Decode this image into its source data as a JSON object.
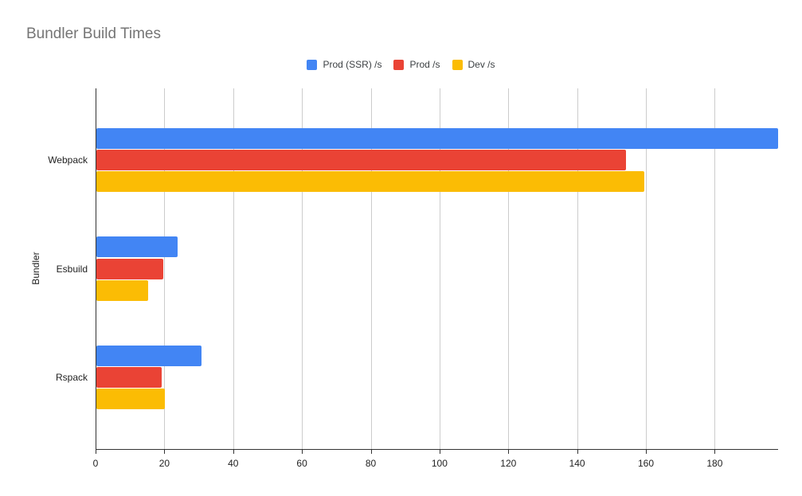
{
  "chart_data": {
    "type": "bar",
    "orientation": "horizontal",
    "title": "Bundler Build Times",
    "xlabel": "",
    "ylabel": "Bundler",
    "categories": [
      "Webpack",
      "Esbuild",
      "Rspack"
    ],
    "series": [
      {
        "name": "Prod (SSR) /s",
        "color": "#4285F4",
        "values": [
          198.2,
          23.6,
          30.6
        ]
      },
      {
        "name": "Prod /s",
        "color": "#EA4335",
        "values": [
          154.0,
          19.4,
          19.0
        ]
      },
      {
        "name": "Dev /s",
        "color": "#FBBC04",
        "values": [
          159.3,
          15.1,
          19.8
        ]
      }
    ],
    "xlim": [
      0,
      198.2
    ],
    "xticks": [
      0,
      20,
      40,
      60,
      80,
      100,
      120,
      140,
      160,
      180
    ],
    "grid": true,
    "legend_position": "top-center",
    "styles": {
      "background": "#ffffff",
      "title_color": "#757575",
      "grid_color": "#cccccc",
      "axis_color": "#333333",
      "tick_label_color": "#222222",
      "legend_text_color": "#3c4043"
    }
  }
}
